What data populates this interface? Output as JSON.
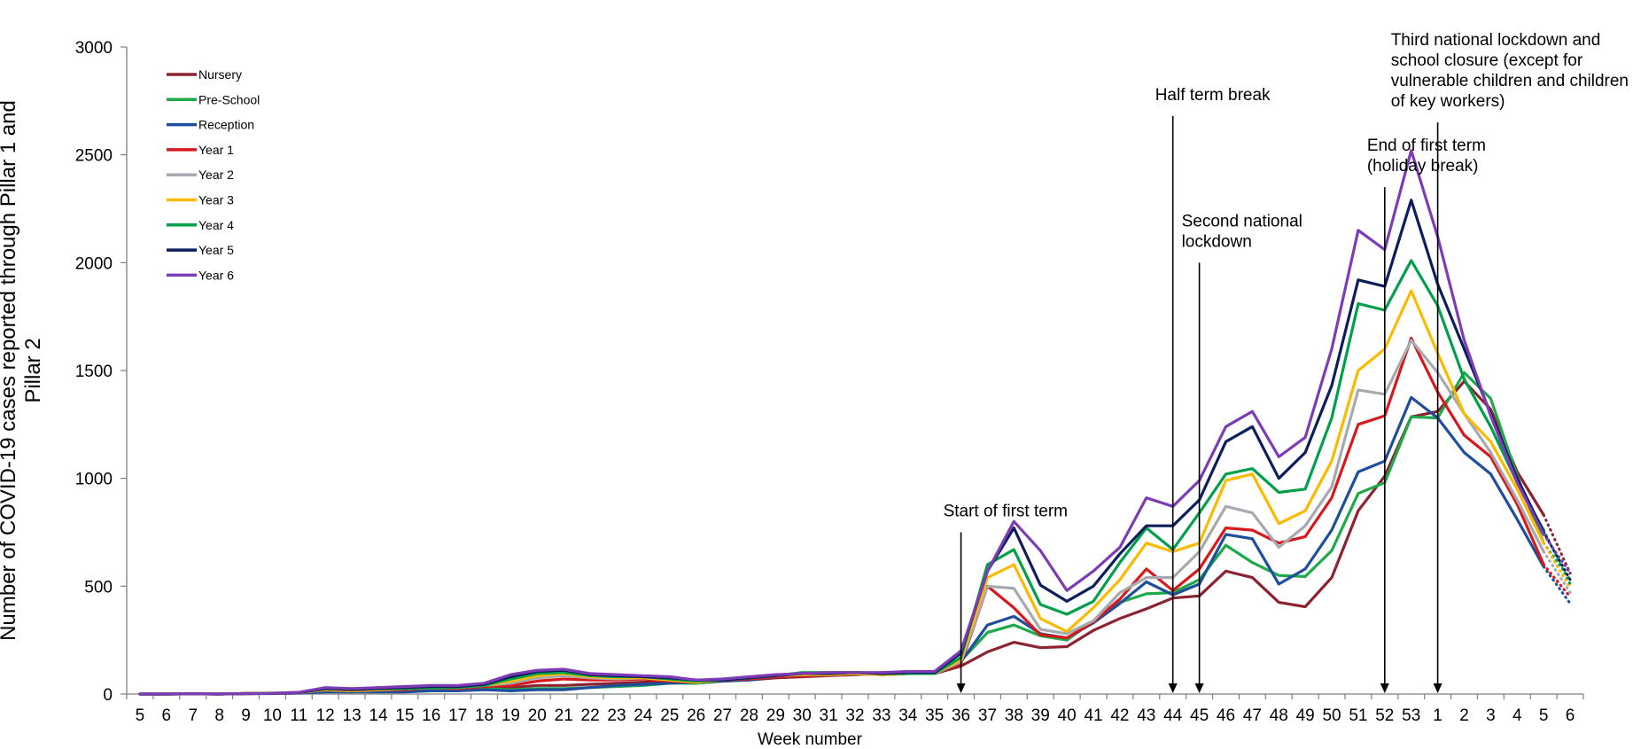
{
  "chart_data": {
    "type": "line",
    "title": "",
    "xlabel": "Week number",
    "ylabel": "Number of COVID-19 cases reported through Pillar 1 and Pillar 2",
    "ylabel_lines": [
      "Number of COVID-19 cases reported through Pillar 1 and",
      "Pillar 2"
    ],
    "ylim": [
      0,
      3000
    ],
    "yticks": [
      0,
      500,
      1000,
      1500,
      2000,
      2500,
      3000
    ],
    "grid": false,
    "legend_position": "top-left",
    "categories": [
      "5",
      "6",
      "7",
      "8",
      "9",
      "10",
      "11",
      "12",
      "13",
      "14",
      "15",
      "16",
      "17",
      "18",
      "19",
      "20",
      "21",
      "22",
      "23",
      "24",
      "25",
      "26",
      "27",
      "28",
      "29",
      "30",
      "31",
      "32",
      "33",
      "34",
      "35",
      "36",
      "37",
      "38",
      "39",
      "40",
      "41",
      "42",
      "43",
      "44",
      "45",
      "46",
      "47",
      "48",
      "49",
      "50",
      "51",
      "52",
      "53",
      "1",
      "2",
      "3",
      "4",
      "5",
      "6"
    ],
    "dotted_tail_from_index": 53,
    "series": [
      {
        "name": "Nursery",
        "color": "#8b2331",
        "values": [
          0,
          0,
          2,
          0,
          3,
          4,
          8,
          25,
          20,
          30,
          25,
          30,
          25,
          35,
          30,
          40,
          40,
          45,
          50,
          55,
          55,
          50,
          60,
          65,
          75,
          80,
          85,
          90,
          95,
          95,
          95,
          130,
          195,
          240,
          215,
          220,
          295,
          350,
          395,
          445,
          455,
          570,
          540,
          425,
          405,
          540,
          850,
          1010,
          1285,
          1310,
          1450,
          1320,
          1030,
          830,
          560
        ]
      },
      {
        "name": "Pre-School",
        "color": "#1eaa4b",
        "values": [
          0,
          0,
          1,
          0,
          2,
          3,
          5,
          15,
          10,
          15,
          15,
          20,
          20,
          25,
          20,
          25,
          25,
          30,
          35,
          40,
          50,
          50,
          60,
          70,
          85,
          100,
          100,
          100,
          95,
          100,
          100,
          155,
          285,
          320,
          270,
          250,
          340,
          425,
          465,
          470,
          530,
          690,
          610,
          550,
          545,
          665,
          930,
          980,
          1285,
          1280,
          1490,
          1370,
          1010,
          700,
          530
        ]
      },
      {
        "name": "Reception",
        "color": "#1f4f9c",
        "values": [
          0,
          0,
          1,
          0,
          2,
          2,
          4,
          10,
          10,
          10,
          10,
          15,
          15,
          20,
          15,
          20,
          20,
          30,
          40,
          45,
          50,
          55,
          60,
          65,
          80,
          90,
          90,
          95,
          90,
          95,
          95,
          150,
          320,
          360,
          280,
          260,
          330,
          420,
          520,
          460,
          510,
          740,
          720,
          510,
          580,
          760,
          1030,
          1080,
          1375,
          1280,
          1120,
          1020,
          810,
          590,
          420
        ]
      },
      {
        "name": "Year 1",
        "color": "#d7191c",
        "values": [
          0,
          0,
          1,
          0,
          2,
          3,
          5,
          20,
          15,
          20,
          20,
          30,
          25,
          35,
          40,
          60,
          70,
          65,
          65,
          70,
          60,
          55,
          65,
          70,
          80,
          85,
          90,
          95,
          90,
          95,
          95,
          140,
          500,
          400,
          275,
          260,
          335,
          440,
          580,
          480,
          580,
          770,
          760,
          700,
          730,
          910,
          1250,
          1290,
          1650,
          1400,
          1200,
          1100,
          880,
          600,
          450
        ]
      },
      {
        "name": "Year 2",
        "color": "#a6aab0",
        "values": [
          0,
          0,
          1,
          0,
          2,
          3,
          5,
          20,
          15,
          20,
          25,
          30,
          30,
          40,
          50,
          75,
          85,
          75,
          70,
          75,
          65,
          55,
          65,
          75,
          85,
          90,
          90,
          95,
          90,
          95,
          95,
          150,
          500,
          490,
          300,
          280,
          340,
          470,
          540,
          540,
          660,
          870,
          840,
          680,
          780,
          960,
          1410,
          1390,
          1640,
          1490,
          1300,
          1120,
          900,
          660,
          470
        ]
      },
      {
        "name": "Year 3",
        "color": "#fbba00",
        "values": [
          0,
          0,
          1,
          0,
          2,
          3,
          6,
          20,
          15,
          20,
          25,
          30,
          30,
          40,
          60,
          85,
          95,
          80,
          75,
          75,
          65,
          55,
          65,
          75,
          85,
          90,
          90,
          95,
          90,
          95,
          95,
          160,
          540,
          600,
          350,
          290,
          400,
          530,
          700,
          660,
          700,
          990,
          1020,
          790,
          850,
          1080,
          1500,
          1600,
          1870,
          1580,
          1300,
          1170,
          950,
          700,
          490
        ]
      },
      {
        "name": "Year 4",
        "color": "#00a04b",
        "values": [
          0,
          0,
          1,
          0,
          2,
          3,
          6,
          25,
          20,
          25,
          25,
          30,
          30,
          40,
          70,
          95,
          100,
          85,
          80,
          80,
          70,
          60,
          65,
          75,
          85,
          95,
          95,
          100,
          95,
          95,
          95,
          170,
          600,
          670,
          415,
          370,
          430,
          610,
          770,
          670,
          840,
          1020,
          1045,
          935,
          950,
          1280,
          1810,
          1780,
          2010,
          1800,
          1460,
          1240,
          980,
          760,
          510
        ]
      },
      {
        "name": "Year 5",
        "color": "#0d1e5c",
        "values": [
          0,
          0,
          1,
          0,
          2,
          3,
          6,
          25,
          20,
          25,
          30,
          35,
          35,
          45,
          80,
          105,
          110,
          90,
          85,
          80,
          75,
          65,
          65,
          75,
          85,
          95,
          95,
          100,
          95,
          100,
          100,
          190,
          570,
          770,
          505,
          430,
          500,
          650,
          780,
          780,
          900,
          1170,
          1240,
          1000,
          1120,
          1430,
          1920,
          1890,
          2290,
          1900,
          1600,
          1300,
          1000,
          750,
          530
        ]
      },
      {
        "name": "Year 6",
        "color": "#7d3cb5",
        "values": [
          0,
          0,
          1,
          0,
          2,
          3,
          8,
          30,
          25,
          30,
          35,
          40,
          40,
          50,
          90,
          110,
          115,
          95,
          90,
          85,
          80,
          65,
          70,
          80,
          90,
          95,
          100,
          100,
          100,
          105,
          105,
          200,
          570,
          800,
          665,
          480,
          570,
          680,
          910,
          870,
          990,
          1240,
          1310,
          1100,
          1190,
          1600,
          2150,
          2060,
          2520,
          2120,
          1640,
          1290,
          980,
          740,
          560
        ]
      }
    ],
    "annotations": [
      {
        "lines": [
          "Start of first term"
        ],
        "week": "36",
        "at_index": 31,
        "arrow_from_y": 750
      },
      {
        "lines": [
          "Half term break"
        ],
        "week": "44",
        "at_index": 39,
        "arrow_from_y": 2680
      },
      {
        "lines": [
          "Second national",
          "lockdown"
        ],
        "week": "45",
        "at_index": 40,
        "arrow_from_y": 2000
      },
      {
        "lines": [
          "End of first term",
          "(holiday break)"
        ],
        "week": "52",
        "at_index": 47,
        "arrow_from_y": 2350
      },
      {
        "lines": [
          "Third national lockdown and",
          "school closure (except for",
          "vulnerable children and children",
          "of key workers)"
        ],
        "week": "1",
        "at_index": 49,
        "arrow_from_y": 2650
      }
    ]
  }
}
